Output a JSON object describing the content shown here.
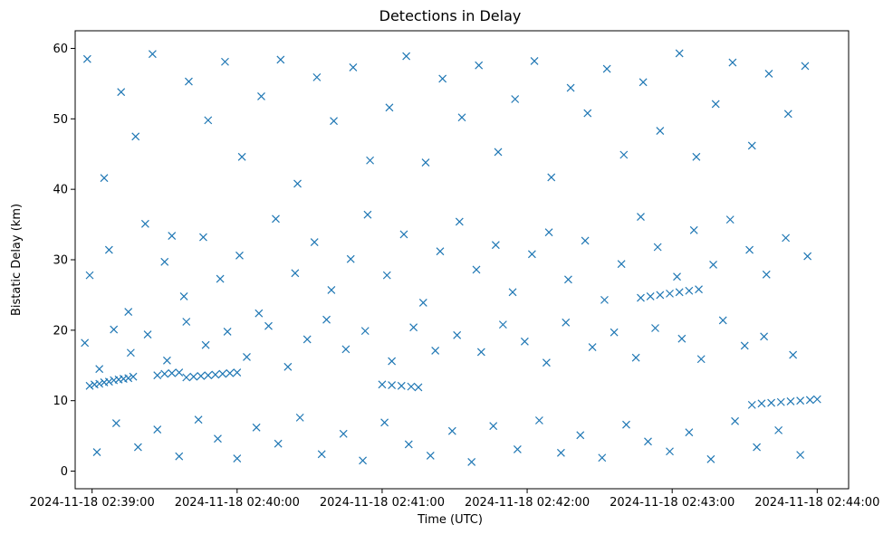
{
  "chart_data": {
    "type": "scatter",
    "title": "Detections in Delay",
    "xlabel": "Time (UTC)",
    "ylabel": "Bistatic Delay (km)",
    "marker": "x",
    "marker_color": "#1f77b4",
    "grid": false,
    "xlim": [
      "2024-11-18 02:38:53",
      "2024-11-18 02:44:13"
    ],
    "ylim": [
      -2.5,
      62.5
    ],
    "xticks": [
      "2024-11-18 02:39:00",
      "2024-11-18 02:40:00",
      "2024-11-18 02:41:00",
      "2024-11-18 02:42:00",
      "2024-11-18 02:43:00",
      "2024-11-18 02:44:00"
    ],
    "yticks": [
      0,
      10,
      20,
      30,
      40,
      50,
      60
    ],
    "series": [
      {
        "x": [
          "2024-11-18 02:38:58",
          "2024-11-18 02:39:05",
          "2024-11-18 02:39:12",
          "2024-11-18 02:39:18",
          "2024-11-18 02:39:25",
          "2024-11-18 02:39:33",
          "2024-11-18 02:39:40",
          "2024-11-18 02:39:48",
          "2024-11-18 02:39:55",
          "2024-11-18 02:40:02",
          "2024-11-18 02:40:10",
          "2024-11-18 02:40:18",
          "2024-11-18 02:40:25",
          "2024-11-18 02:40:33",
          "2024-11-18 02:40:40",
          "2024-11-18 02:40:48",
          "2024-11-18 02:40:55",
          "2024-11-18 02:41:03",
          "2024-11-18 02:41:10",
          "2024-11-18 02:41:18",
          "2024-11-18 02:41:25",
          "2024-11-18 02:41:33",
          "2024-11-18 02:41:40",
          "2024-11-18 02:41:48",
          "2024-11-18 02:41:55",
          "2024-11-18 02:42:03",
          "2024-11-18 02:42:10",
          "2024-11-18 02:42:18",
          "2024-11-18 02:42:25",
          "2024-11-18 02:42:33",
          "2024-11-18 02:42:40",
          "2024-11-18 02:42:48",
          "2024-11-18 02:42:55",
          "2024-11-18 02:43:03",
          "2024-11-18 02:43:10",
          "2024-11-18 02:43:18",
          "2024-11-18 02:43:25",
          "2024-11-18 02:43:33",
          "2024-11-18 02:43:40",
          "2024-11-18 02:43:48",
          "2024-11-18 02:43:55",
          "2024-11-18 02:38:59",
          "2024-11-18 02:39:07",
          "2024-11-18 02:39:15",
          "2024-11-18 02:39:22",
          "2024-11-18 02:39:30",
          "2024-11-18 02:39:38",
          "2024-11-18 02:39:46",
          "2024-11-18 02:39:53",
          "2024-11-18 02:40:01",
          "2024-11-18 02:40:09",
          "2024-11-18 02:40:16",
          "2024-11-18 02:40:24",
          "2024-11-18 02:40:32",
          "2024-11-18 02:40:39",
          "2024-11-18 02:40:47",
          "2024-11-18 02:40:54",
          "2024-11-18 02:41:02",
          "2024-11-18 02:41:09",
          "2024-11-18 02:41:17",
          "2024-11-18 02:41:24",
          "2024-11-18 02:41:32",
          "2024-11-18 02:41:39",
          "2024-11-18 02:41:47",
          "2024-11-18 02:41:54",
          "2024-11-18 02:42:02",
          "2024-11-18 02:42:09",
          "2024-11-18 02:42:17",
          "2024-11-18 02:42:24",
          "2024-11-18 02:42:32",
          "2024-11-18 02:42:39",
          "2024-11-18 02:42:47",
          "2024-11-18 02:42:54",
          "2024-11-18 02:43:02",
          "2024-11-18 02:43:09",
          "2024-11-18 02:43:17",
          "2024-11-18 02:43:24",
          "2024-11-18 02:43:32",
          "2024-11-18 02:43:39",
          "2024-11-18 02:43:47",
          "2024-11-18 02:43:56",
          "2024-11-18 02:39:02",
          "2024-11-18 02:39:10",
          "2024-11-18 02:39:19",
          "2024-11-18 02:39:27",
          "2024-11-18 02:39:36",
          "2024-11-18 02:39:44",
          "2024-11-18 02:39:52",
          "2024-11-18 02:40:00",
          "2024-11-18 02:40:08",
          "2024-11-18 02:40:17",
          "2024-11-18 02:40:26",
          "2024-11-18 02:40:35",
          "2024-11-18 02:40:44",
          "2024-11-18 02:40:52",
          "2024-11-18 02:41:01",
          "2024-11-18 02:41:11",
          "2024-11-18 02:41:20",
          "2024-11-18 02:41:29",
          "2024-11-18 02:41:37",
          "2024-11-18 02:41:46",
          "2024-11-18 02:41:56",
          "2024-11-18 02:42:05",
          "2024-11-18 02:42:14",
          "2024-11-18 02:42:22",
          "2024-11-18 02:42:31",
          "2024-11-18 02:42:41",
          "2024-11-18 02:42:50",
          "2024-11-18 02:42:59",
          "2024-11-18 02:43:07",
          "2024-11-18 02:43:16",
          "2024-11-18 02:43:26",
          "2024-11-18 02:43:35",
          "2024-11-18 02:43:44",
          "2024-11-18 02:43:53",
          "2024-11-18 02:38:57",
          "2024-11-18 02:39:03",
          "2024-11-18 02:39:09",
          "2024-11-18 02:39:16",
          "2024-11-18 02:39:23",
          "2024-11-18 02:39:31",
          "2024-11-18 02:39:39",
          "2024-11-18 02:39:47",
          "2024-11-18 02:39:56",
          "2024-11-18 02:40:04",
          "2024-11-18 02:40:13",
          "2024-11-18 02:40:21",
          "2024-11-18 02:40:29",
          "2024-11-18 02:40:37",
          "2024-11-18 02:40:45",
          "2024-11-18 02:40:53",
          "2024-11-18 02:41:04",
          "2024-11-18 02:41:13",
          "2024-11-18 02:41:22",
          "2024-11-18 02:41:31",
          "2024-11-18 02:41:41",
          "2024-11-18 02:41:50",
          "2024-11-18 02:41:59",
          "2024-11-18 02:42:08",
          "2024-11-18 02:42:16",
          "2024-11-18 02:42:27",
          "2024-11-18 02:42:36",
          "2024-11-18 02:42:45",
          "2024-11-18 02:42:53",
          "2024-11-18 02:43:04",
          "2024-11-18 02:43:12",
          "2024-11-18 02:43:21",
          "2024-11-18 02:43:30",
          "2024-11-18 02:43:38",
          "2024-11-18 02:43:50",
          "2024-11-18 02:38:59",
          "2024-11-18 02:39:01",
          "2024-11-18 02:39:03",
          "2024-11-18 02:39:05",
          "2024-11-18 02:39:07",
          "2024-11-18 02:39:09",
          "2024-11-18 02:39:11",
          "2024-11-18 02:39:13",
          "2024-11-18 02:39:15",
          "2024-11-18 02:39:17",
          "2024-11-18 02:39:27",
          "2024-11-18 02:39:30",
          "2024-11-18 02:39:33",
          "2024-11-18 02:39:36",
          "2024-11-18 02:39:39",
          "2024-11-18 02:39:42",
          "2024-11-18 02:39:45",
          "2024-11-18 02:39:48",
          "2024-11-18 02:39:51",
          "2024-11-18 02:39:54",
          "2024-11-18 02:39:57",
          "2024-11-18 02:40:00",
          "2024-11-18 02:41:00",
          "2024-11-18 02:41:04",
          "2024-11-18 02:41:08",
          "2024-11-18 02:41:12",
          "2024-11-18 02:41:15",
          "2024-11-18 02:42:47",
          "2024-11-18 02:42:51",
          "2024-11-18 02:42:55",
          "2024-11-18 02:42:59",
          "2024-11-18 02:43:03",
          "2024-11-18 02:43:07",
          "2024-11-18 02:43:11",
          "2024-11-18 02:43:33",
          "2024-11-18 02:43:37",
          "2024-11-18 02:43:41",
          "2024-11-18 02:43:45",
          "2024-11-18 02:43:49",
          "2024-11-18 02:43:53",
          "2024-11-18 02:43:57",
          "2024-11-18 02:44:00"
        ],
        "y": [
          58.5,
          41.6,
          53.8,
          47.5,
          59.2,
          33.4,
          55.3,
          49.8,
          58.1,
          44.6,
          53.2,
          58.4,
          40.8,
          55.9,
          49.7,
          57.3,
          44.1,
          51.6,
          58.9,
          43.8,
          55.7,
          50.2,
          57.6,
          45.3,
          52.8,
          58.2,
          41.7,
          54.4,
          50.8,
          57.1,
          44.9,
          55.2,
          48.3,
          59.3,
          44.6,
          52.1,
          58.0,
          46.2,
          56.4,
          50.7,
          57.5,
          27.8,
          31.4,
          22.6,
          35.1,
          29.7,
          24.8,
          33.2,
          27.3,
          30.6,
          22.4,
          35.8,
          28.1,
          32.5,
          25.7,
          30.1,
          36.4,
          27.8,
          33.6,
          23.9,
          31.2,
          35.4,
          28.6,
          32.1,
          25.4,
          30.8,
          33.9,
          27.2,
          32.7,
          24.3,
          29.4,
          36.1,
          31.8,
          27.6,
          34.2,
          29.3,
          35.7,
          31.4,
          27.9,
          33.1,
          30.5,
          2.7,
          6.8,
          3.4,
          5.9,
          2.1,
          7.3,
          4.6,
          1.8,
          6.2,
          3.9,
          7.6,
          2.4,
          5.3,
          1.5,
          6.9,
          3.8,
          2.2,
          5.7,
          1.3,
          6.4,
          3.1,
          7.2,
          2.6,
          5.1,
          1.9,
          6.6,
          4.2,
          2.8,
          5.5,
          1.7,
          7.1,
          3.4,
          5.8,
          2.3,
          18.2,
          14.5,
          20.1,
          16.8,
          19.4,
          15.7,
          21.2,
          17.9,
          19.8,
          16.2,
          20.6,
          14.8,
          18.7,
          21.5,
          17.3,
          19.9,
          15.6,
          20.4,
          17.1,
          19.3,
          16.9,
          20.8,
          18.4,
          15.4,
          21.1,
          17.6,
          19.7,
          16.1,
          20.3,
          18.8,
          15.9,
          21.4,
          17.8,
          19.1,
          16.5,
          12.1,
          12.3,
          12.4,
          12.6,
          12.7,
          12.9,
          13.0,
          13.1,
          13.2,
          13.4,
          13.6,
          13.8,
          13.9,
          14.0,
          13.3,
          13.4,
          13.5,
          13.6,
          13.7,
          13.8,
          13.9,
          14.0,
          12.3,
          12.2,
          12.1,
          12.0,
          11.9,
          24.6,
          24.8,
          25.0,
          25.2,
          25.4,
          25.6,
          25.8,
          9.4,
          9.6,
          9.7,
          9.8,
          9.9,
          10.0,
          10.1,
          10.2
        ]
      }
    ]
  }
}
